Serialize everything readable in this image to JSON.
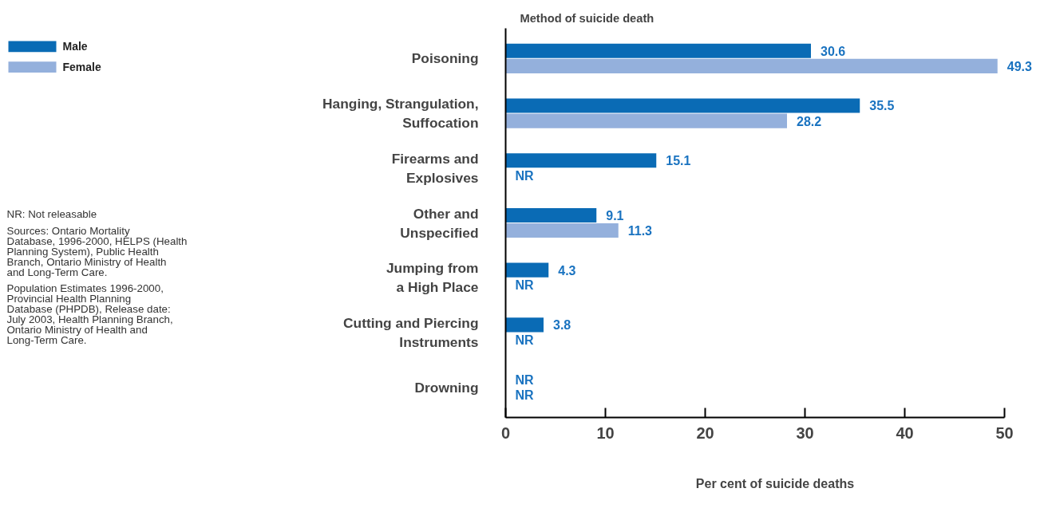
{
  "chart_data": {
    "type": "bar",
    "orientation": "horizontal",
    "title": "Method of suicide death",
    "xlabel": "Per cent of suicide deaths",
    "categories": [
      "Poisoning",
      "Hanging, Strangulation, Suffocation",
      "Firearms and Explosives",
      "Other and Unspecified",
      "Jumping from a High Place",
      "Cutting and Piercing Instruments",
      "Drowning"
    ],
    "series": [
      {
        "name": "Male",
        "color": "#0a6bb5",
        "values": [
          30.6,
          35.5,
          15.1,
          9.1,
          4.3,
          3.8,
          null
        ],
        "value_labels": [
          "30.6",
          "35.5",
          "15.1",
          "9.1",
          "4.3",
          "3.8",
          "NR"
        ]
      },
      {
        "name": "Female",
        "color": "#94b0dc",
        "values": [
          49.3,
          28.2,
          null,
          11.3,
          null,
          null,
          null
        ],
        "value_labels": [
          "49.3",
          "28.2",
          "NR",
          "11.3",
          "NR",
          "NR",
          "NR"
        ]
      }
    ],
    "xlim": [
      0,
      50
    ],
    "xticks": [
      0,
      10,
      20,
      30,
      40,
      50
    ],
    "grid": false,
    "legend": "top left",
    "annotations": [
      "NR: Not releasable",
      "Sources: Ontario Mortality Database, 1996-2000, HELPS (Health Planning System), Public Health Branch, Ontario Ministry of Health and Long-Term Care.",
      "Population Estimates 1996-2000, Provincial Health Planning Database (PHPDB), Release date: July 2003, Health Planning Branch, Ontario Ministry of Health and Long-Term Care."
    ]
  }
}
